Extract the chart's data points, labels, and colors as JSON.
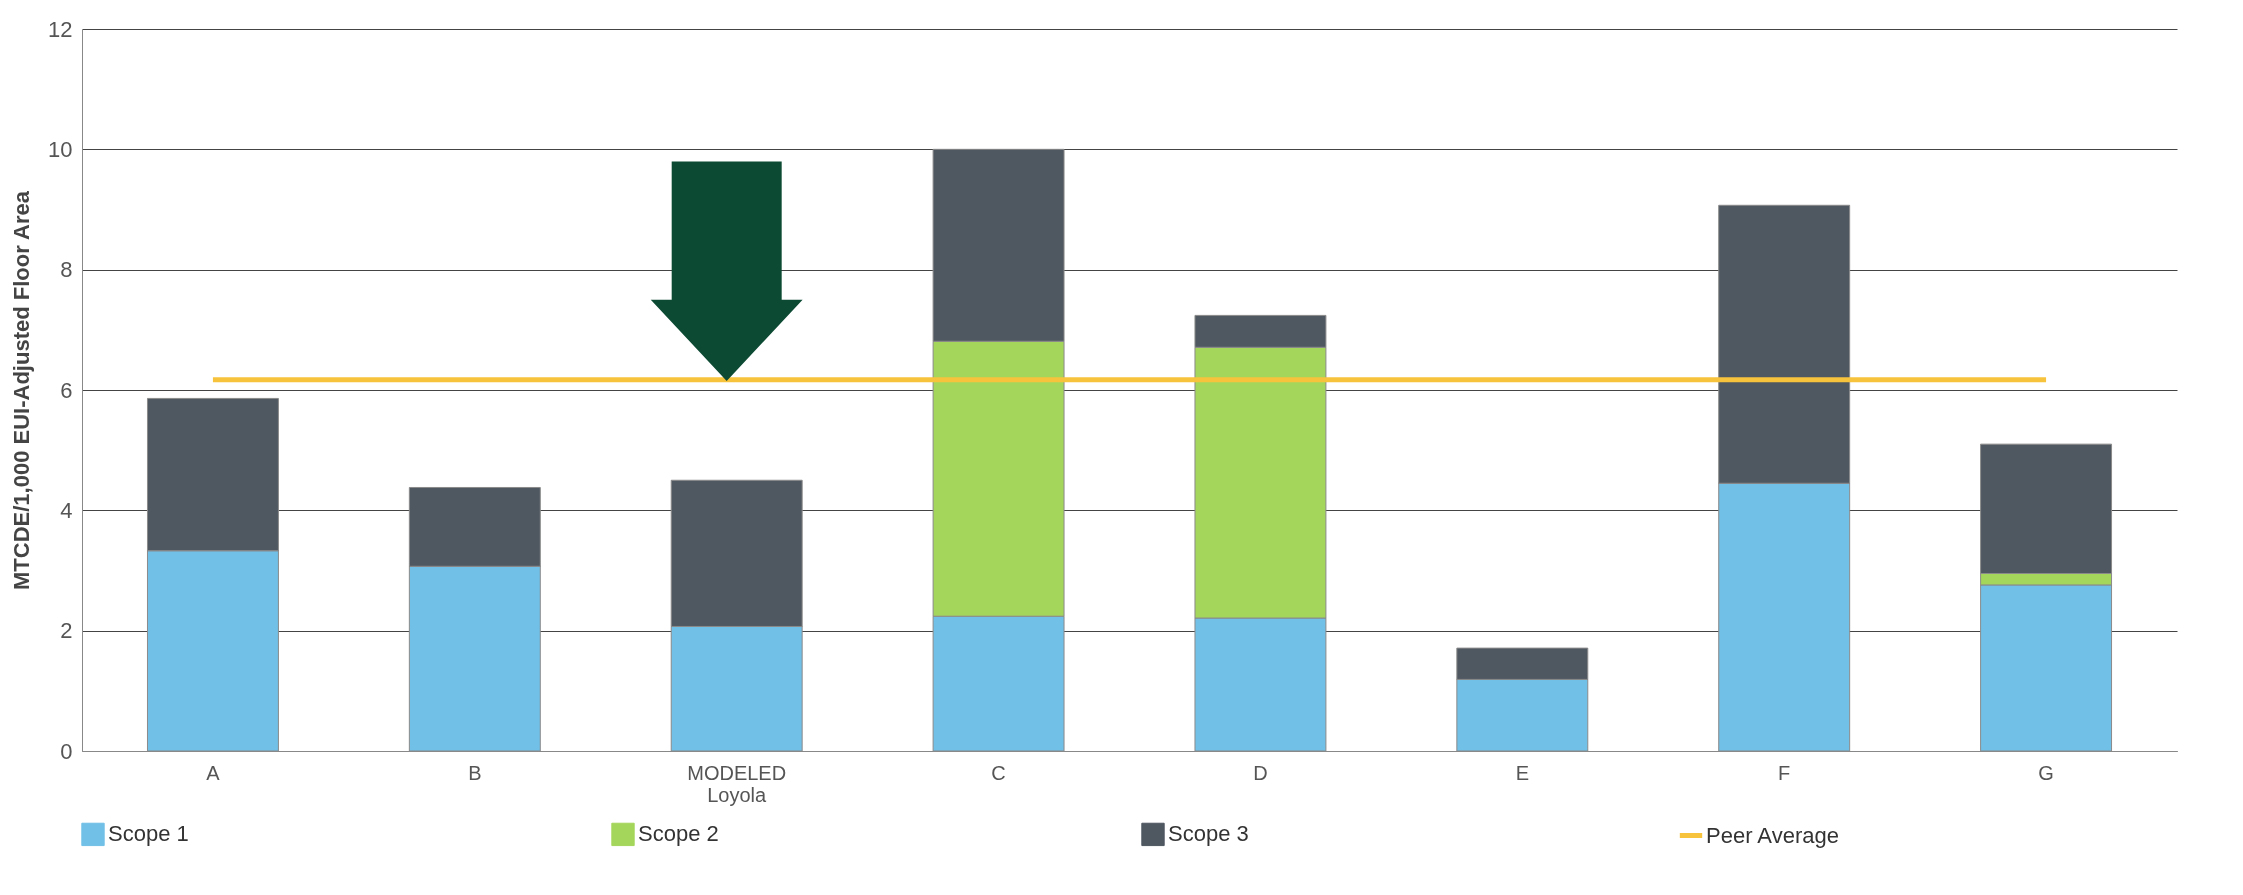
{
  "chart_data": {
    "type": "bar",
    "stacked": true,
    "ylabel": "MTCDE/1,000 EUI-Adjusted Floor Area",
    "categories": [
      "A",
      "B",
      "MODELED\nLoyola",
      "C",
      "D",
      "E",
      "F",
      "G"
    ],
    "series": [
      {
        "name": "Scope 1",
        "color": "#71c0e7",
        "values": [
          3.33,
          3.07,
          2.07,
          2.24,
          2.21,
          1.19,
          4.45,
          2.76
        ]
      },
      {
        "name": "Scope 2",
        "color": "#a5d65c",
        "values": [
          0,
          0,
          0,
          4.57,
          4.5,
          0,
          0,
          0.19
        ]
      },
      {
        "name": "Scope 3",
        "color": "#4f5761",
        "values": [
          2.53,
          1.31,
          2.43,
          3.19,
          0.53,
          0.52,
          4.62,
          2.15
        ]
      }
    ],
    "ref_lines": [
      {
        "axis": "y",
        "value": 6.17,
        "label": "Peer Average",
        "color": "#f7c23c"
      }
    ],
    "ylim": [
      0,
      12
    ],
    "yticks": [
      0,
      2,
      4,
      6,
      8,
      10,
      12
    ],
    "grid": "y",
    "legend": "bottom"
  }
}
